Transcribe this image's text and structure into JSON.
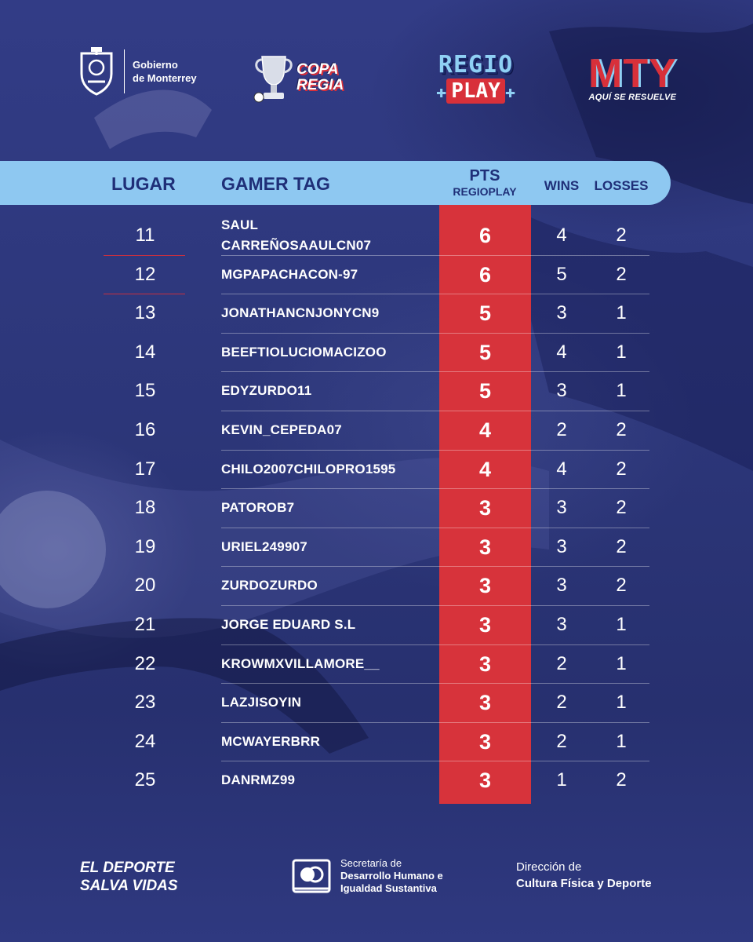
{
  "header": {
    "gobierno": {
      "line1": "Gobierno",
      "line2": "de Monterrey",
      "icon": "coat-of-arms-icon"
    },
    "copa_regia": {
      "line1": "COPA",
      "line2": "REGIA",
      "icon": "trophy-icon"
    },
    "regio_play": {
      "line1": "REGIO",
      "line2": "PLAY"
    },
    "mty": {
      "big": "MTY",
      "small": "AQUÍ SE RESUELVE"
    }
  },
  "table": {
    "headers": {
      "lugar": "LUGAR",
      "gamer_tag": "GAMER TAG",
      "pts": "PTS",
      "pts_sub": "REGIOPLAY",
      "wins": "WINS",
      "losses": "LOSSES"
    },
    "rows": [
      {
        "rank": "11",
        "tag_line1": "SAUL",
        "tag_line2": "CARREÑOSAAULCN07",
        "pts": "6",
        "wins": "4",
        "losses": "2"
      },
      {
        "rank": "12",
        "tag_line1": "MGPAPACHACON-97",
        "pts": "6",
        "wins": "5",
        "losses": "2"
      },
      {
        "rank": "13",
        "tag_line1": "JONATHANCNJONYCN9",
        "pts": "5",
        "wins": "3",
        "losses": "1"
      },
      {
        "rank": "14",
        "tag_line1": "BEEFTIOLUCIOMACIZOO",
        "pts": "5",
        "wins": "4",
        "losses": "1"
      },
      {
        "rank": "15",
        "tag_line1": "EDYZURDO11",
        "pts": "5",
        "wins": "3",
        "losses": "1"
      },
      {
        "rank": "16",
        "tag_line1": "KEVIN_CEPEDA07",
        "pts": "4",
        "wins": "2",
        "losses": "2"
      },
      {
        "rank": "17",
        "tag_line1": "CHILO2007CHILOPRO1595",
        "pts": "4",
        "wins": "4",
        "losses": "2"
      },
      {
        "rank": "18",
        "tag_line1": "PATOROB7",
        "pts": "3",
        "wins": "3",
        "losses": "2"
      },
      {
        "rank": "19",
        "tag_line1": "URIEL249907",
        "pts": "3",
        "wins": "3",
        "losses": "2"
      },
      {
        "rank": "20",
        "tag_line1": "ZURDOZURDO",
        "pts": "3",
        "wins": "3",
        "losses": "2"
      },
      {
        "rank": "21",
        "tag_line1": "JORGE EDUARD S.L",
        "pts": "3",
        "wins": "3",
        "losses": "1"
      },
      {
        "rank": "22",
        "tag_line1": "KROWMXVILLAMORE__",
        "pts": "3",
        "wins": "2",
        "losses": "1"
      },
      {
        "rank": "23",
        "tag_line1": "LAZJISOYIN",
        "pts": "3",
        "wins": "2",
        "losses": "1"
      },
      {
        "rank": "24",
        "tag_line1": "MCWAYERBRR",
        "pts": "3",
        "wins": "2",
        "losses": "1"
      },
      {
        "rank": "25",
        "tag_line1": "DANRMZ99",
        "pts": "3",
        "wins": "1",
        "losses": "2"
      }
    ]
  },
  "footer": {
    "slogan_line1": "EL DEPORTE",
    "slogan_line2": "SALVA VIDAS",
    "secretaria_line1": "Secretaría de",
    "secretaria_line2": "Desarrollo Humano e",
    "secretaria_line3": "Igualdad Sustantiva",
    "direccion_line1": "Dirección de",
    "direccion_line2": "Cultura Física y Deporte"
  },
  "colors": {
    "background": "#2c3679",
    "header_bar": "#8ec8f1",
    "header_text": "#1f2f78",
    "pts_column": "#d7333b"
  }
}
